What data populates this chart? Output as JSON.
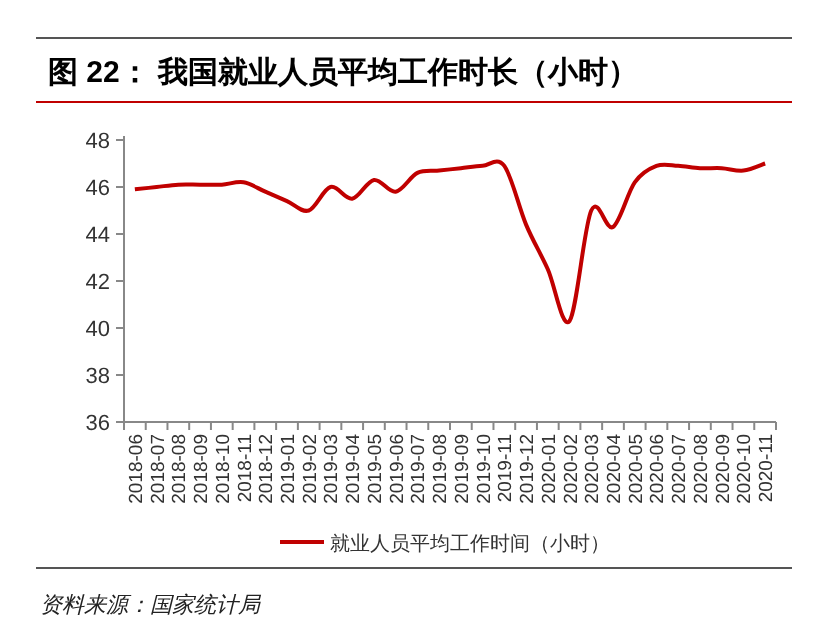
{
  "chart_data": {
    "type": "line",
    "title": "图 22：  我国就业人员平均工作时长（小时）",
    "categories": [
      "2018-06",
      "2018-07",
      "2018-08",
      "2018-09",
      "2018-10",
      "2018-11",
      "2018-12",
      "2019-01",
      "2019-02",
      "2019-03",
      "2019-04",
      "2019-05",
      "2019-06",
      "2019-07",
      "2019-08",
      "2019-09",
      "2019-10",
      "2019-11",
      "2019-12",
      "2020-01",
      "2020-02",
      "2020-03",
      "2020-04",
      "2020-05",
      "2020-06",
      "2020-07",
      "2020-08",
      "2020-09",
      "2020-10",
      "2020-11"
    ],
    "series": [
      {
        "name": "就业人员平均工作时间（小时）",
        "color": "#c00000",
        "values": [
          45.9,
          46.0,
          46.1,
          46.1,
          46.1,
          46.2,
          45.8,
          45.4,
          45.0,
          46.0,
          45.5,
          46.3,
          45.8,
          46.6,
          46.7,
          46.8,
          46.9,
          46.9,
          44.4,
          42.5,
          40.3,
          45.0,
          44.3,
          46.2,
          46.9,
          46.9,
          46.8,
          46.8,
          46.7,
          47.0
        ]
      }
    ],
    "ylim": [
      36,
      48
    ],
    "yticks": [
      36,
      38,
      40,
      42,
      44,
      46,
      48
    ],
    "grid": false,
    "legend": "bottom",
    "annotations": [
      "资料来源：国家统计局"
    ]
  }
}
